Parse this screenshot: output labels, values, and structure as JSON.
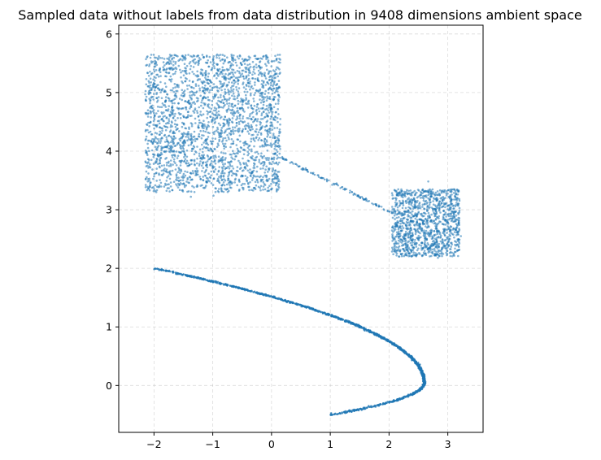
{
  "chart_data": {
    "type": "scatter",
    "title": "Sampled data without labels from data distribution in 9408 dimensions ambient space",
    "xlabel": "",
    "ylabel": "",
    "xlim": [
      -2.6,
      3.6
    ],
    "ylim": [
      -0.8,
      6.15
    ],
    "grid": true,
    "x_ticks": [
      -2,
      -1,
      0,
      1,
      2,
      3
    ],
    "x_tick_labels": [
      "−2",
      "−1",
      "0",
      "1",
      "2",
      "3"
    ],
    "y_ticks": [
      0,
      1,
      2,
      3,
      4,
      5,
      6
    ],
    "y_tick_labels": [
      "0",
      "1",
      "2",
      "3",
      "4",
      "5",
      "6"
    ],
    "point_color": "#1f77b4",
    "series": [
      {
        "shape": "uniform-square",
        "x_range": [
          -2.15,
          0.15
        ],
        "y_range": [
          3.3,
          5.65
        ],
        "approx_points": 2500
      },
      {
        "shape": "connector-line",
        "from": [
          0.15,
          3.9
        ],
        "to": [
          2.05,
          2.95
        ],
        "approx_points": 120
      },
      {
        "shape": "uniform-square",
        "x_range": [
          2.05,
          3.2
        ],
        "y_range": [
          2.2,
          3.35
        ],
        "approx_points": 1200
      },
      {
        "shape": "parabolic-curve",
        "description_points": [
          [
            -2.0,
            2.0
          ],
          [
            0.0,
            1.28
          ],
          [
            1.5,
            0.65
          ],
          [
            2.6,
            0.05
          ],
          [
            1.0,
            -0.5
          ]
        ],
        "vertex": [
          2.6,
          0.05
        ],
        "approx_points": 1500
      }
    ]
  }
}
